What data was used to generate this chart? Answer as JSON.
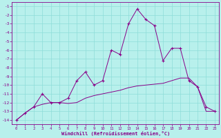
{
  "xlabel": "Windchill (Refroidissement éolien,°C)",
  "x": [
    0,
    1,
    2,
    3,
    4,
    5,
    6,
    7,
    8,
    9,
    10,
    11,
    12,
    13,
    14,
    15,
    16,
    17,
    18,
    19,
    20,
    21,
    22,
    23
  ],
  "line1": [
    -14.0,
    -13.2,
    -12.5,
    -11.0,
    -12.0,
    -12.0,
    -11.5,
    -9.5,
    -8.5,
    -10.0,
    -9.5,
    -6.0,
    -6.5,
    -3.0,
    -1.3,
    -2.5,
    -3.2,
    -7.2,
    -5.8,
    -5.8,
    -9.5,
    -10.2,
    -12.5,
    -13.0
  ],
  "line2": [
    -14.0,
    -13.2,
    -12.5,
    -12.2,
    -12.0,
    -12.0,
    -12.1,
    -12.0,
    -11.5,
    -11.2,
    -11.0,
    -10.8,
    -10.6,
    -10.3,
    -10.1,
    -10.0,
    -9.9,
    -9.8,
    -9.5,
    -9.2,
    -9.2,
    -10.2,
    -13.0,
    -13.0
  ],
  "line_color": "#880088",
  "marker": "+",
  "bg_color": "#b8f0ec",
  "grid_color": "#8dddd8",
  "ylim": [
    -14.5,
    -0.5
  ],
  "xlim": [
    -0.5,
    23.5
  ],
  "yticks": [
    -14,
    -13,
    -12,
    -11,
    -10,
    -9,
    -8,
    -7,
    -6,
    -5,
    -4,
    -3,
    -2,
    -1
  ],
  "xticks": [
    0,
    1,
    2,
    3,
    4,
    5,
    6,
    7,
    8,
    9,
    10,
    11,
    12,
    13,
    14,
    15,
    16,
    17,
    18,
    19,
    20,
    21,
    22,
    23
  ]
}
